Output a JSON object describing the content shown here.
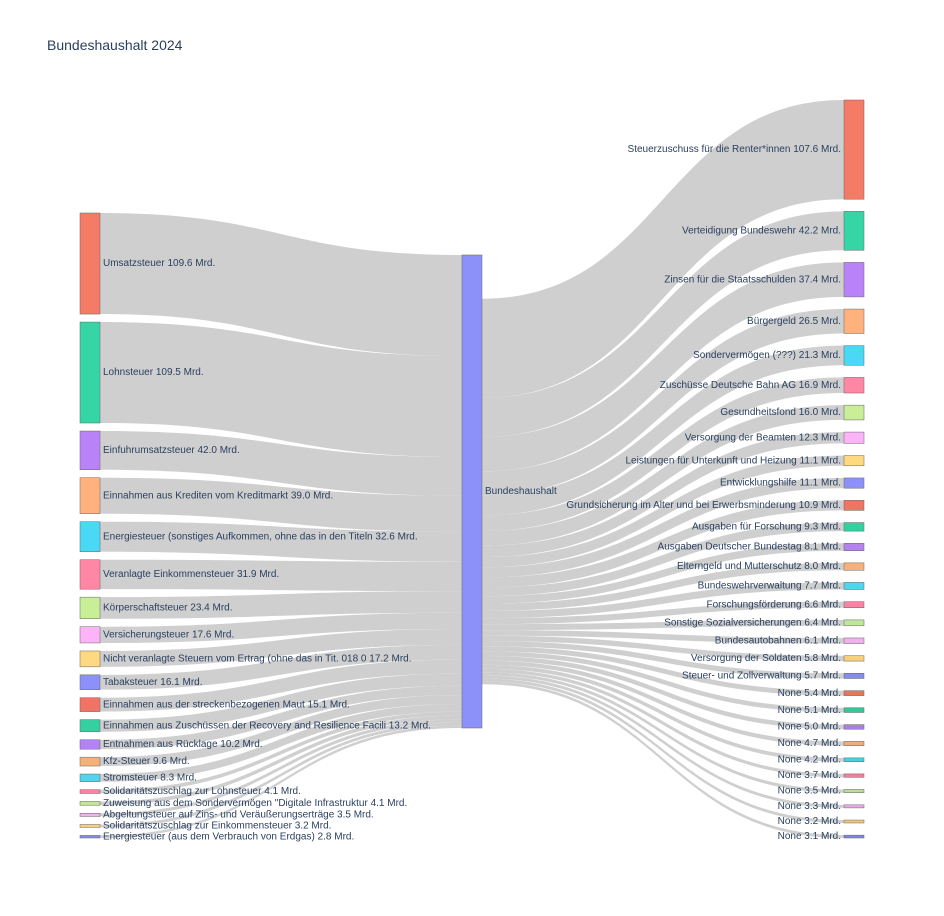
{
  "chart_data": {
    "type": "sankey",
    "title": "Bundeshaushalt 2024",
    "unit": "Mrd.",
    "link_color": "#cccccc",
    "center": {
      "label": "Bundeshaushalt",
      "color": "#8c91fa"
    },
    "sources": [
      {
        "label": "Umsatzsteuer",
        "value": 109.6,
        "color": "#f47b66"
      },
      {
        "label": "Lohnsteuer",
        "value": 109.5,
        "color": "#35d5a5"
      },
      {
        "label": "Einfuhrumsatzsteuer",
        "value": 42.0,
        "color": "#ba82f8"
      },
      {
        "label": "Einnahmen aus Krediten vom Kreditmarkt",
        "value": 39.0,
        "color": "#ffb27e"
      },
      {
        "label": "Energiesteuer (sonstiges Aufkommen, ohne das in den Titeln",
        "value": 32.6,
        "color": "#4ad9f5"
      },
      {
        "label": "Veranlagte Einkommensteuer",
        "value": 31.9,
        "color": "#ff87a5"
      },
      {
        "label": "Körperschaftsteuer",
        "value": 23.4,
        "color": "#c8ee98"
      },
      {
        "label": "Versicherungsteuer",
        "value": 17.6,
        "color": "#fdb3f7"
      },
      {
        "label": "Nicht veranlagte Steuern vom Ertrag (ohne das in Tit. 018 0",
        "value": 17.2,
        "color": "#fed97f"
      },
      {
        "label": "Tabaksteuer",
        "value": 16.1,
        "color": "#8c91fa"
      },
      {
        "label": "Einnahmen aus der streckenbezogenen Maut",
        "value": 15.1,
        "color": "#f07464"
      },
      {
        "label": "Einnahmen aus Zuschüssen der Recovery and Resilience Facili",
        "value": 13.2,
        "color": "#35d0a0"
      },
      {
        "label": "Entnahmen aus Rücklage",
        "value": 10.2,
        "color": "#b384f0"
      },
      {
        "label": "Kfz-Steuer",
        "value": 9.6,
        "color": "#f8b07a"
      },
      {
        "label": "Stromsteuer",
        "value": 8.3,
        "color": "#52d4ee"
      },
      {
        "label": "Solidaritätszuschlag zur Lohnsteuer",
        "value": 4.1,
        "color": "#f684a2"
      },
      {
        "label": "Zuweisung aus dem Sondervermögen \"Digitale Infrastruktur",
        "value": 4.1,
        "color": "#bfe69a"
      },
      {
        "label": "Abgeltungsteuer auf Zins- und Veräußerungserträge",
        "value": 3.5,
        "color": "#f2b0ee"
      },
      {
        "label": "Solidaritätszuschlag zur Einkommensteuer",
        "value": 3.2,
        "color": "#f6d07e"
      },
      {
        "label": "Energiesteuer (aus dem Verbrauch von Erdgas)",
        "value": 2.8,
        "color": "#858ce9"
      }
    ],
    "targets": [
      {
        "label": "Steuerzuschuss für die Renter*innen",
        "value": 107.6,
        "color": "#f47b66"
      },
      {
        "label": "Verteidigung Bundeswehr",
        "value": 42.2,
        "color": "#35d5a5"
      },
      {
        "label": "Zinsen für die Staatsschulden",
        "value": 37.4,
        "color": "#ba82f8"
      },
      {
        "label": "Bürgergeld",
        "value": 26.5,
        "color": "#ffb27e"
      },
      {
        "label": "Sondervermögen (???)",
        "value": 21.3,
        "color": "#4ad9f5"
      },
      {
        "label": "Zuschüsse Deutsche Bahn AG",
        "value": 16.9,
        "color": "#ff87a5"
      },
      {
        "label": "Gesundheitsfond",
        "value": 16.0,
        "color": "#c8ee98"
      },
      {
        "label": "Versorgung der Beamten",
        "value": 12.3,
        "color": "#fdb3f7"
      },
      {
        "label": "Leistungen für Unterkunft und Heizung",
        "value": 11.1,
        "color": "#fed97f"
      },
      {
        "label": "Entwicklungshilfe",
        "value": 11.1,
        "color": "#8c91fa"
      },
      {
        "label": "Grundsicherung im Alter und bei Erwerbsminderung",
        "value": 10.9,
        "color": "#f07464"
      },
      {
        "label": "Ausgaben für Forschung",
        "value": 9.3,
        "color": "#35d0a0"
      },
      {
        "label": "Ausgaben Deutscher Bundestag",
        "value": 8.1,
        "color": "#b384f0"
      },
      {
        "label": "Elterngeld und Mutterschutz",
        "value": 8.0,
        "color": "#f8b07a"
      },
      {
        "label": "Bundeswehrverwaltung",
        "value": 7.7,
        "color": "#52d4ee"
      },
      {
        "label": "Forschungsförderung",
        "value": 6.6,
        "color": "#f684a2"
      },
      {
        "label": "Sonstige Sozialversicherungen",
        "value": 6.4,
        "color": "#bfe69a"
      },
      {
        "label": "Bundesautobahnen",
        "value": 6.1,
        "color": "#f2b0ee"
      },
      {
        "label": "Versorgung der Soldaten",
        "value": 5.8,
        "color": "#f6d07e"
      },
      {
        "label": "Steuer- und Zollverwaltung",
        "value": 5.7,
        "color": "#858ce9"
      },
      {
        "label": "None",
        "value": 5.4,
        "color": "#e8735f"
      },
      {
        "label": "None",
        "value": 5.1,
        "color": "#33c79a"
      },
      {
        "label": "None",
        "value": 5.0,
        "color": "#a97fe6"
      },
      {
        "label": "None",
        "value": 4.7,
        "color": "#f4ab77"
      },
      {
        "label": "None",
        "value": 4.2,
        "color": "#4ccde6"
      },
      {
        "label": "None",
        "value": 3.7,
        "color": "#ee809d"
      },
      {
        "label": "None",
        "value": 3.5,
        "color": "#b9de94"
      },
      {
        "label": "None",
        "value": 3.3,
        "color": "#eaaae6"
      },
      {
        "label": "None",
        "value": 3.2,
        "color": "#efc877"
      },
      {
        "label": "None",
        "value": 3.1,
        "color": "#7f86e0"
      }
    ]
  }
}
